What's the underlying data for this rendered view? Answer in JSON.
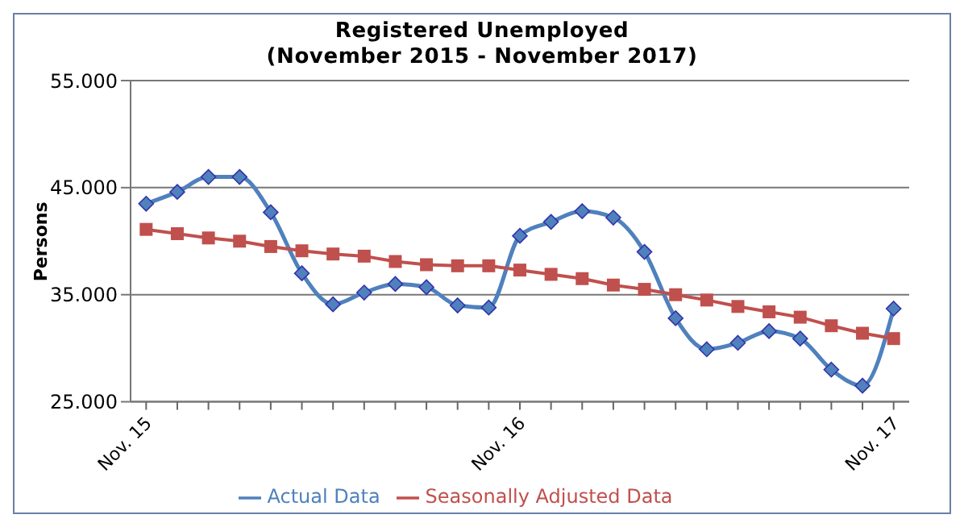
{
  "chart_data": {
    "type": "line",
    "title": "Registered Unemployed\n(November 2015 - November 2017)",
    "ylabel": "Persons",
    "categories": [
      "Nov. 15",
      null,
      null,
      null,
      null,
      null,
      null,
      null,
      null,
      null,
      null,
      null,
      "Nov. 16",
      null,
      null,
      null,
      null,
      null,
      null,
      null,
      null,
      null,
      null,
      null,
      "Nov. 17"
    ],
    "series": [
      {
        "name": "Actual Data",
        "color": "#4f81bd",
        "marker": "diamond",
        "values": [
          43500,
          44600,
          46000,
          46000,
          42700,
          37000,
          34100,
          35200,
          36000,
          35700,
          34000,
          33800,
          40500,
          41800,
          42800,
          42200,
          39000,
          32800,
          29900,
          30500,
          31600,
          30900,
          28000,
          26500,
          33700
        ]
      },
      {
        "name": "Seasonally Adjusted Data",
        "color": "#c0504d",
        "marker": "square",
        "values": [
          41100,
          40700,
          40300,
          40000,
          39500,
          39100,
          38800,
          38600,
          38100,
          37800,
          37700,
          37700,
          37300,
          36900,
          36500,
          35900,
          35500,
          35000,
          34500,
          33900,
          33400,
          32900,
          32100,
          31400,
          30900
        ]
      }
    ],
    "ylim": [
      25000,
      55000
    ],
    "yticks": [
      {
        "value": 25000,
        "label": "25.000"
      },
      {
        "value": 35000,
        "label": "35.000"
      },
      {
        "value": 45000,
        "label": "45.000"
      },
      {
        "value": 55000,
        "label": "55.000"
      }
    ],
    "grid": "y",
    "legend": "bottom"
  }
}
